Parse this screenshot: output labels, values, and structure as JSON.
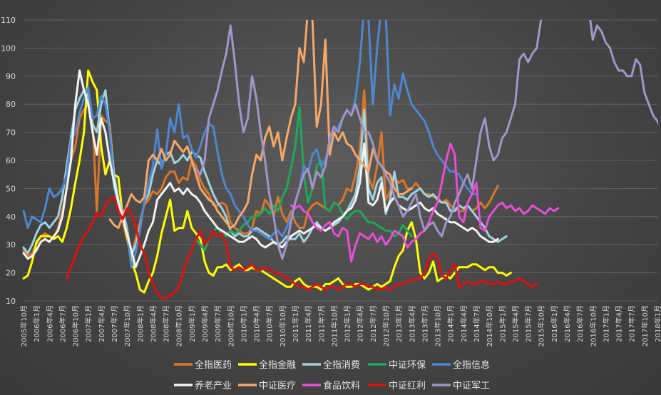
{
  "chart_data": {
    "type": "line",
    "title": "",
    "xlabel": "",
    "ylabel": "",
    "ylim": [
      10,
      110
    ],
    "yticks": [
      10,
      20,
      30,
      40,
      50,
      60,
      70,
      80,
      90,
      100,
      110
    ],
    "grid": "horizontal",
    "legend_position": "bottom",
    "x_tick_labels": [
      "2005年10月",
      "2006年1月",
      "2006年4月",
      "2006年7月",
      "2006年10月",
      "2007年1月",
      "2007年4月",
      "2007年7月",
      "2007年10月",
      "2008年1月",
      "2008年4月",
      "2008年7月",
      "2008年10月",
      "2009年1月",
      "2009年4月",
      "2009年7月",
      "2009年10月",
      "2010年1月",
      "2010年4月",
      "2010年7月",
      "2010年10月",
      "2011年1月",
      "2011年4月",
      "2011年7月",
      "2011年10月",
      "2012年1月",
      "2012年4月",
      "2012年7月",
      "2012年10月",
      "2013年1月",
      "2013年4月",
      "2013年7月",
      "2013年10月",
      "2014年1月",
      "2014年4月",
      "2014年7月",
      "2014年10月",
      "2015年1月",
      "2015年4月",
      "2015年7月",
      "2015年10月",
      "2016年1月",
      "2016年4月",
      "2016年7月",
      "2016年10月",
      "2017年1月",
      "2017年4月",
      "2017年7月",
      "2017年10月",
      "2018年1月"
    ],
    "series": [
      {
        "name": "全指医药",
        "color": "#d9772b",
        "start": 0,
        "values": [
          28,
          26,
          27,
          30,
          33,
          34,
          33,
          32,
          36,
          42,
          50,
          60,
          65,
          75,
          78,
          80,
          74,
          42,
          76,
          74,
          73,
          55,
          45,
          38,
          32,
          26,
          32,
          38,
          44,
          46,
          49,
          48,
          50,
          54,
          56,
          56,
          52,
          54,
          53,
          60,
          58,
          53,
          50,
          48,
          44,
          44,
          45,
          44,
          38,
          36,
          35,
          34,
          34,
          36,
          42,
          41,
          46,
          44,
          40,
          47,
          41,
          38,
          42,
          38,
          36,
          36,
          42,
          44,
          45,
          44,
          43,
          42,
          45,
          44,
          46,
          50,
          49,
          55,
          64,
          85,
          54,
          50,
          58,
          70,
          46,
          49,
          54,
          52,
          53,
          50,
          50,
          52,
          50,
          48,
          48,
          47,
          47,
          45,
          46,
          44,
          43,
          42,
          42,
          44,
          42,
          43,
          45,
          43,
          45,
          48,
          51
        ]
      },
      {
        "name": "全指金融",
        "color": "#ffff00",
        "start": 0,
        "values": [
          18,
          19,
          24,
          31,
          33,
          33,
          33,
          32,
          33,
          31,
          36,
          43,
          52,
          60,
          70,
          92,
          88,
          85,
          65,
          55,
          60,
          55,
          54,
          40,
          33,
          24,
          20,
          14,
          13,
          17,
          20,
          26,
          34,
          40,
          46,
          35,
          36,
          36,
          42,
          36,
          34,
          32,
          24,
          20,
          19,
          22,
          22,
          23,
          21,
          22,
          23,
          21,
          21,
          22,
          21,
          21,
          20,
          19,
          18,
          17,
          16,
          15,
          15,
          17,
          18,
          16,
          15,
          15,
          15,
          14,
          16,
          16,
          17,
          18,
          16,
          15,
          15,
          16,
          16,
          15,
          14,
          15,
          16,
          15,
          16,
          17,
          22,
          26,
          28,
          35,
          38,
          32,
          20,
          18,
          20,
          24,
          17,
          18,
          19,
          18,
          20,
          22,
          22,
          22,
          23,
          23,
          22,
          21,
          22,
          22,
          20,
          20,
          19,
          20
        ]
      },
      {
        "name": "全指消费",
        "color": "#9dd3e0",
        "start": 0,
        "values": [
          29,
          27,
          30,
          34,
          37,
          38,
          36,
          38,
          40,
          47,
          58,
          68,
          78,
          82,
          85,
          84,
          73,
          70,
          80,
          85,
          70,
          55,
          46,
          42,
          36,
          26,
          30,
          36,
          45,
          48,
          55,
          60,
          58,
          62,
          63,
          59,
          60,
          62,
          60,
          63,
          62,
          61,
          56,
          52,
          48,
          45,
          43,
          40,
          35,
          33,
          34,
          33,
          33,
          35,
          36,
          35,
          34,
          33,
          31,
          30,
          31,
          33,
          32,
          32,
          34,
          31,
          33,
          36,
          38,
          36,
          35,
          36,
          37,
          38,
          40,
          42,
          45,
          48,
          58,
          78,
          50,
          46,
          52,
          54,
          41,
          46,
          56,
          47,
          47,
          46,
          48,
          49,
          50,
          48,
          47,
          48,
          46,
          45,
          45,
          42,
          42,
          44,
          43,
          44,
          42,
          40,
          38,
          36,
          33,
          32,
          31,
          32,
          33
        ]
      },
      {
        "name": "中证环保",
        "color": "#1fa85a",
        "start": 40,
        "values": [
          32,
          30,
          28,
          32,
          35,
          36,
          34,
          33,
          35,
          34,
          35,
          37,
          38,
          40,
          40,
          41,
          43,
          41,
          44,
          42,
          47,
          50,
          57,
          65,
          79,
          55,
          45,
          50,
          58,
          60,
          43,
          42,
          45,
          44,
          41,
          39,
          41,
          42,
          42,
          40,
          38,
          38,
          37,
          36,
          35,
          35,
          33,
          34,
          37,
          35,
          33
        ]
      },
      {
        "name": "全指信息",
        "color": "#4f87cf",
        "start": 0,
        "values": [
          42,
          36,
          40,
          39,
          38,
          43,
          50,
          47,
          48,
          50,
          55,
          67,
          70,
          77,
          82,
          86,
          75,
          76,
          83,
          80,
          70,
          50,
          45,
          40,
          35,
          22,
          27,
          35,
          45,
          52,
          58,
          71,
          57,
          62,
          75,
          70,
          80,
          68,
          69,
          64,
          61,
          65,
          70,
          73,
          72,
          63,
          55,
          50,
          48,
          44,
          42,
          40,
          37,
          35,
          35,
          34,
          33,
          32,
          34,
          35,
          33,
          36,
          40,
          45,
          50,
          58,
          56,
          62,
          64,
          58,
          60,
          66,
          70,
          72,
          75,
          78,
          76,
          82,
          95,
          115,
          110,
          80,
          100,
          115,
          112,
          76,
          87,
          82,
          91,
          85,
          80,
          78,
          76,
          74,
          70,
          65,
          62,
          60,
          58,
          56,
          56,
          55,
          52,
          50,
          48,
          48
        ]
      },
      {
        "name": "养老产业",
        "color": "#f2f2f2",
        "start": 0,
        "values": [
          27,
          25,
          26,
          28,
          31,
          32,
          31,
          33,
          35,
          40,
          50,
          60,
          80,
          92,
          85,
          80,
          70,
          62,
          75,
          70,
          60,
          52,
          45,
          40,
          34,
          28,
          22,
          26,
          30,
          35,
          38,
          46,
          48,
          50,
          52,
          49,
          50,
          48,
          50,
          48,
          47,
          45,
          42,
          40,
          38,
          36,
          35,
          34,
          33,
          32,
          31,
          31,
          32,
          33,
          32,
          30,
          29,
          30,
          31,
          30,
          29,
          31,
          33,
          34,
          35,
          34,
          35,
          36,
          37,
          36,
          35,
          36,
          38,
          39,
          40,
          42,
          43,
          46,
          52,
          66,
          45,
          44,
          46,
          52,
          42,
          45,
          47,
          44,
          43,
          42,
          43,
          44,
          45,
          43,
          42,
          43,
          41,
          40,
          39,
          38,
          38,
          37,
          36,
          35,
          36,
          35,
          33,
          32,
          31,
          31,
          32
        ]
      },
      {
        "name": "中证医疗",
        "color": "#f5a86a",
        "start": 20,
        "values": [
          39,
          37,
          36,
          40,
          44,
          48,
          46,
          45,
          47,
          60,
          62,
          60,
          64,
          60,
          62,
          67,
          65,
          63,
          65,
          60,
          55,
          50,
          48,
          46,
          45,
          42,
          40,
          38,
          36,
          37,
          40,
          42,
          45,
          55,
          62,
          60,
          68,
          72,
          65,
          70,
          60,
          68,
          75,
          80,
          100,
          95,
          115,
          110,
          72,
          80,
          103,
          62,
          70,
          67,
          70,
          66,
          65,
          62,
          60,
          58,
          56,
          64,
          60,
          58,
          56,
          55,
          50,
          48,
          48,
          49,
          50
        ]
      },
      {
        "name": "食品饮料",
        "color": "#e84fd9",
        "start": 62,
        "values": [
          44,
          43,
          44,
          42,
          41,
          38,
          36,
          35,
          37,
          38,
          34,
          33,
          36,
          35,
          24,
          30,
          34,
          33,
          32,
          34,
          31,
          33,
          30,
          32,
          35,
          34,
          33,
          29,
          31,
          32,
          34,
          35,
          38,
          42,
          45,
          52,
          60,
          66,
          62,
          40,
          38,
          45,
          48,
          52,
          36,
          35,
          40,
          42,
          44,
          45,
          43,
          44,
          42,
          43,
          41,
          42,
          44,
          43,
          42,
          41,
          43,
          42,
          43
        ]
      },
      {
        "name": "中证红利",
        "color": "#e01010",
        "start": 10,
        "values": [
          18,
          22,
          26,
          30,
          33,
          35,
          38,
          41,
          40,
          44,
          46,
          47,
          42,
          39,
          43,
          41,
          37,
          30,
          27,
          20,
          16,
          13,
          11,
          11,
          12,
          13,
          15,
          20,
          25,
          28,
          32,
          35,
          30,
          32,
          35,
          33,
          34,
          30,
          22,
          21,
          22,
          21,
          22,
          23,
          21,
          21,
          22,
          21,
          20,
          20,
          19,
          18,
          17,
          16,
          15,
          15,
          14,
          15,
          16,
          15,
          14,
          15,
          15,
          14,
          15,
          16,
          16,
          15,
          16,
          16,
          15,
          15,
          14,
          14,
          15,
          14,
          15,
          16,
          16,
          17,
          17,
          18,
          18,
          20,
          25,
          27,
          25,
          19,
          18,
          21,
          23,
          15,
          16,
          17,
          16,
          16,
          17,
          17,
          16,
          16,
          17,
          16,
          16,
          17,
          17,
          18,
          17,
          16,
          15,
          16
        ]
      },
      {
        "name": "中证军工",
        "color": "#a195c9",
        "start": 40,
        "values": [
          57,
          55,
          60,
          75,
          80,
          85,
          92,
          98,
          108,
          95,
          80,
          70,
          75,
          90,
          82,
          70,
          60,
          48,
          40,
          30,
          25,
          30,
          38,
          45,
          50,
          55,
          57,
          50,
          56,
          54,
          58,
          68,
          72,
          70,
          75,
          78,
          76,
          80,
          75,
          70,
          70,
          66,
          60,
          58,
          55,
          52,
          47,
          44,
          40,
          42,
          45,
          48,
          40,
          35,
          37,
          38,
          35,
          33,
          38,
          40,
          45,
          48,
          52,
          55,
          50,
          60,
          70,
          75,
          65,
          60,
          62,
          68,
          70,
          75,
          80,
          96,
          98,
          95,
          98,
          100,
          110,
          115,
          115,
          115,
          115,
          115,
          115,
          115,
          115,
          115,
          115,
          115,
          103,
          108,
          106,
          102,
          100,
          95,
          92,
          92,
          90,
          90,
          96,
          94,
          84,
          80,
          76,
          74,
          70,
          66,
          65,
          65,
          66
        ]
      }
    ]
  }
}
